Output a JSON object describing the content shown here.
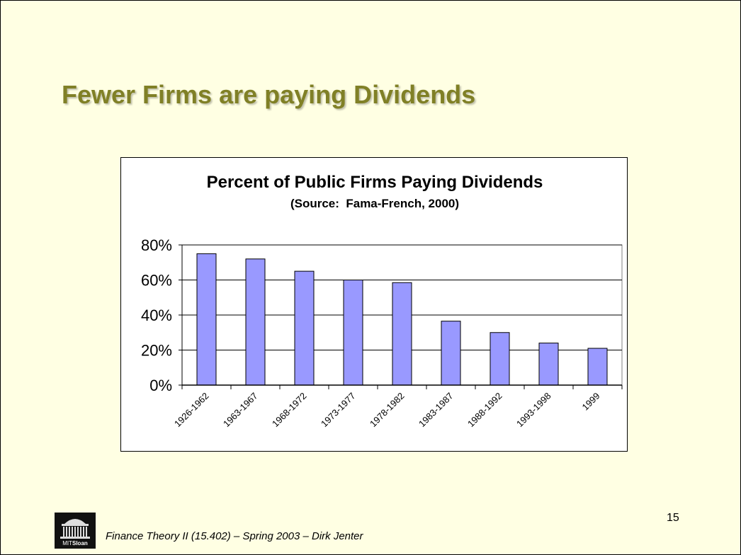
{
  "slide": {
    "title": "Fewer Firms are paying Dividends",
    "footer": "Finance Theory II (15.402) – Spring 2003 – Dirk Jenter",
    "page_number": "15",
    "logo": {
      "icon": "mit-dome-icon",
      "text_light": "MIT",
      "text_bold": "Sloan"
    }
  },
  "colors": {
    "background": "#FFFFE3",
    "title": "#808026",
    "bar_fill": "#9999FF",
    "bar_stroke": "#000000",
    "grid": "#000000"
  },
  "chart_data": {
    "type": "bar",
    "title": "Percent of Public Firms Paying Dividends",
    "subtitle": "(Source:  Fama-French, 2000)",
    "xlabel": "",
    "ylabel": "",
    "categories": [
      "1926-1962",
      "1963-1967",
      "1968-1972",
      "1973-1977",
      "1978-1982",
      "1983-1987",
      "1988-1992",
      "1993-1998",
      "1999"
    ],
    "values": [
      75,
      72,
      65,
      60,
      58.5,
      36.5,
      30,
      24,
      21
    ],
    "ylim": [
      0,
      80
    ],
    "yticks": [
      0,
      20,
      40,
      60,
      80
    ],
    "ytick_labels": [
      "0%",
      "20%",
      "40%",
      "60%",
      "80%"
    ],
    "grid": true,
    "legend": "none"
  }
}
